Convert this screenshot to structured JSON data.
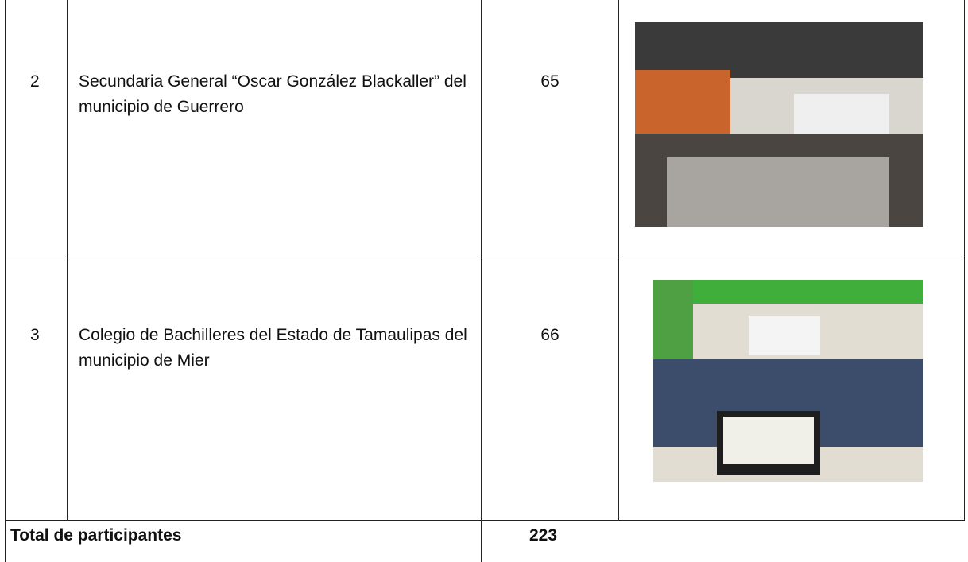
{
  "table": {
    "rows": [
      {
        "number": "2",
        "school": "Secundaria General “Oscar González Blackaller” del municipio de Guerrero",
        "participants": 65
      },
      {
        "number": "3",
        "school": "Colegio de Bachilleres del Estado de Tamaulipas del municipio de Mier",
        "participants": 66
      }
    ],
    "total": {
      "label": "Total de participantes",
      "value": 223
    }
  }
}
